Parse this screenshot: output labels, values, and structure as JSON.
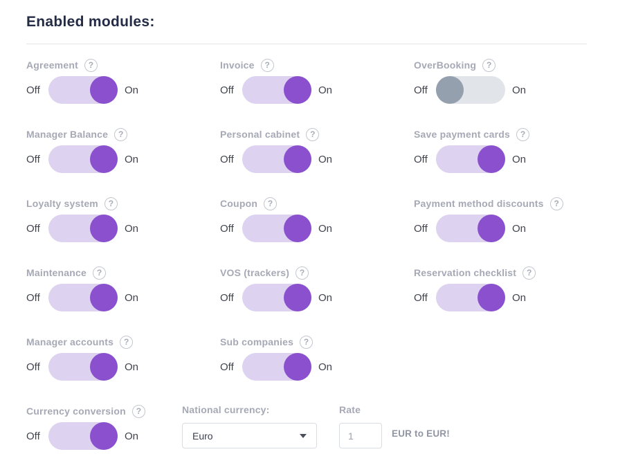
{
  "page": {
    "title": "Enabled modules:"
  },
  "labels": {
    "off": "Off",
    "on": "On",
    "help": "?"
  },
  "modules": [
    {
      "name": "Agreement",
      "state": "on"
    },
    {
      "name": "Invoice",
      "state": "on"
    },
    {
      "name": "OverBooking",
      "state": "off"
    },
    {
      "name": "Manager Balance",
      "state": "on"
    },
    {
      "name": "Personal cabinet",
      "state": "on"
    },
    {
      "name": "Save payment cards",
      "state": "on"
    },
    {
      "name": "Loyalty system",
      "state": "on"
    },
    {
      "name": "Coupon",
      "state": "on"
    },
    {
      "name": "Payment method discounts",
      "state": "on"
    },
    {
      "name": "Maintenance",
      "state": "on"
    },
    {
      "name": "VOS (trackers)",
      "state": "on"
    },
    {
      "name": "Reservation checklist",
      "state": "on"
    },
    {
      "name": "Manager accounts",
      "state": "on"
    },
    {
      "name": "Sub companies",
      "state": "on"
    },
    {
      "name": "Currency conversion",
      "state": "on"
    }
  ],
  "currency": {
    "national_currency_label": "National currency:",
    "selected": "Euro",
    "rate_label": "Rate",
    "rate_value": "1",
    "conversion_text": "EUR to EUR!"
  },
  "colors": {
    "accent_purple": "#8a50ce",
    "toggle_track_on": "#ddd2f0",
    "toggle_knob_off": "#94a0ad",
    "toggle_track_off": "#e1e4e8",
    "title_text": "#232b45",
    "label_text": "#a6a9b5"
  }
}
